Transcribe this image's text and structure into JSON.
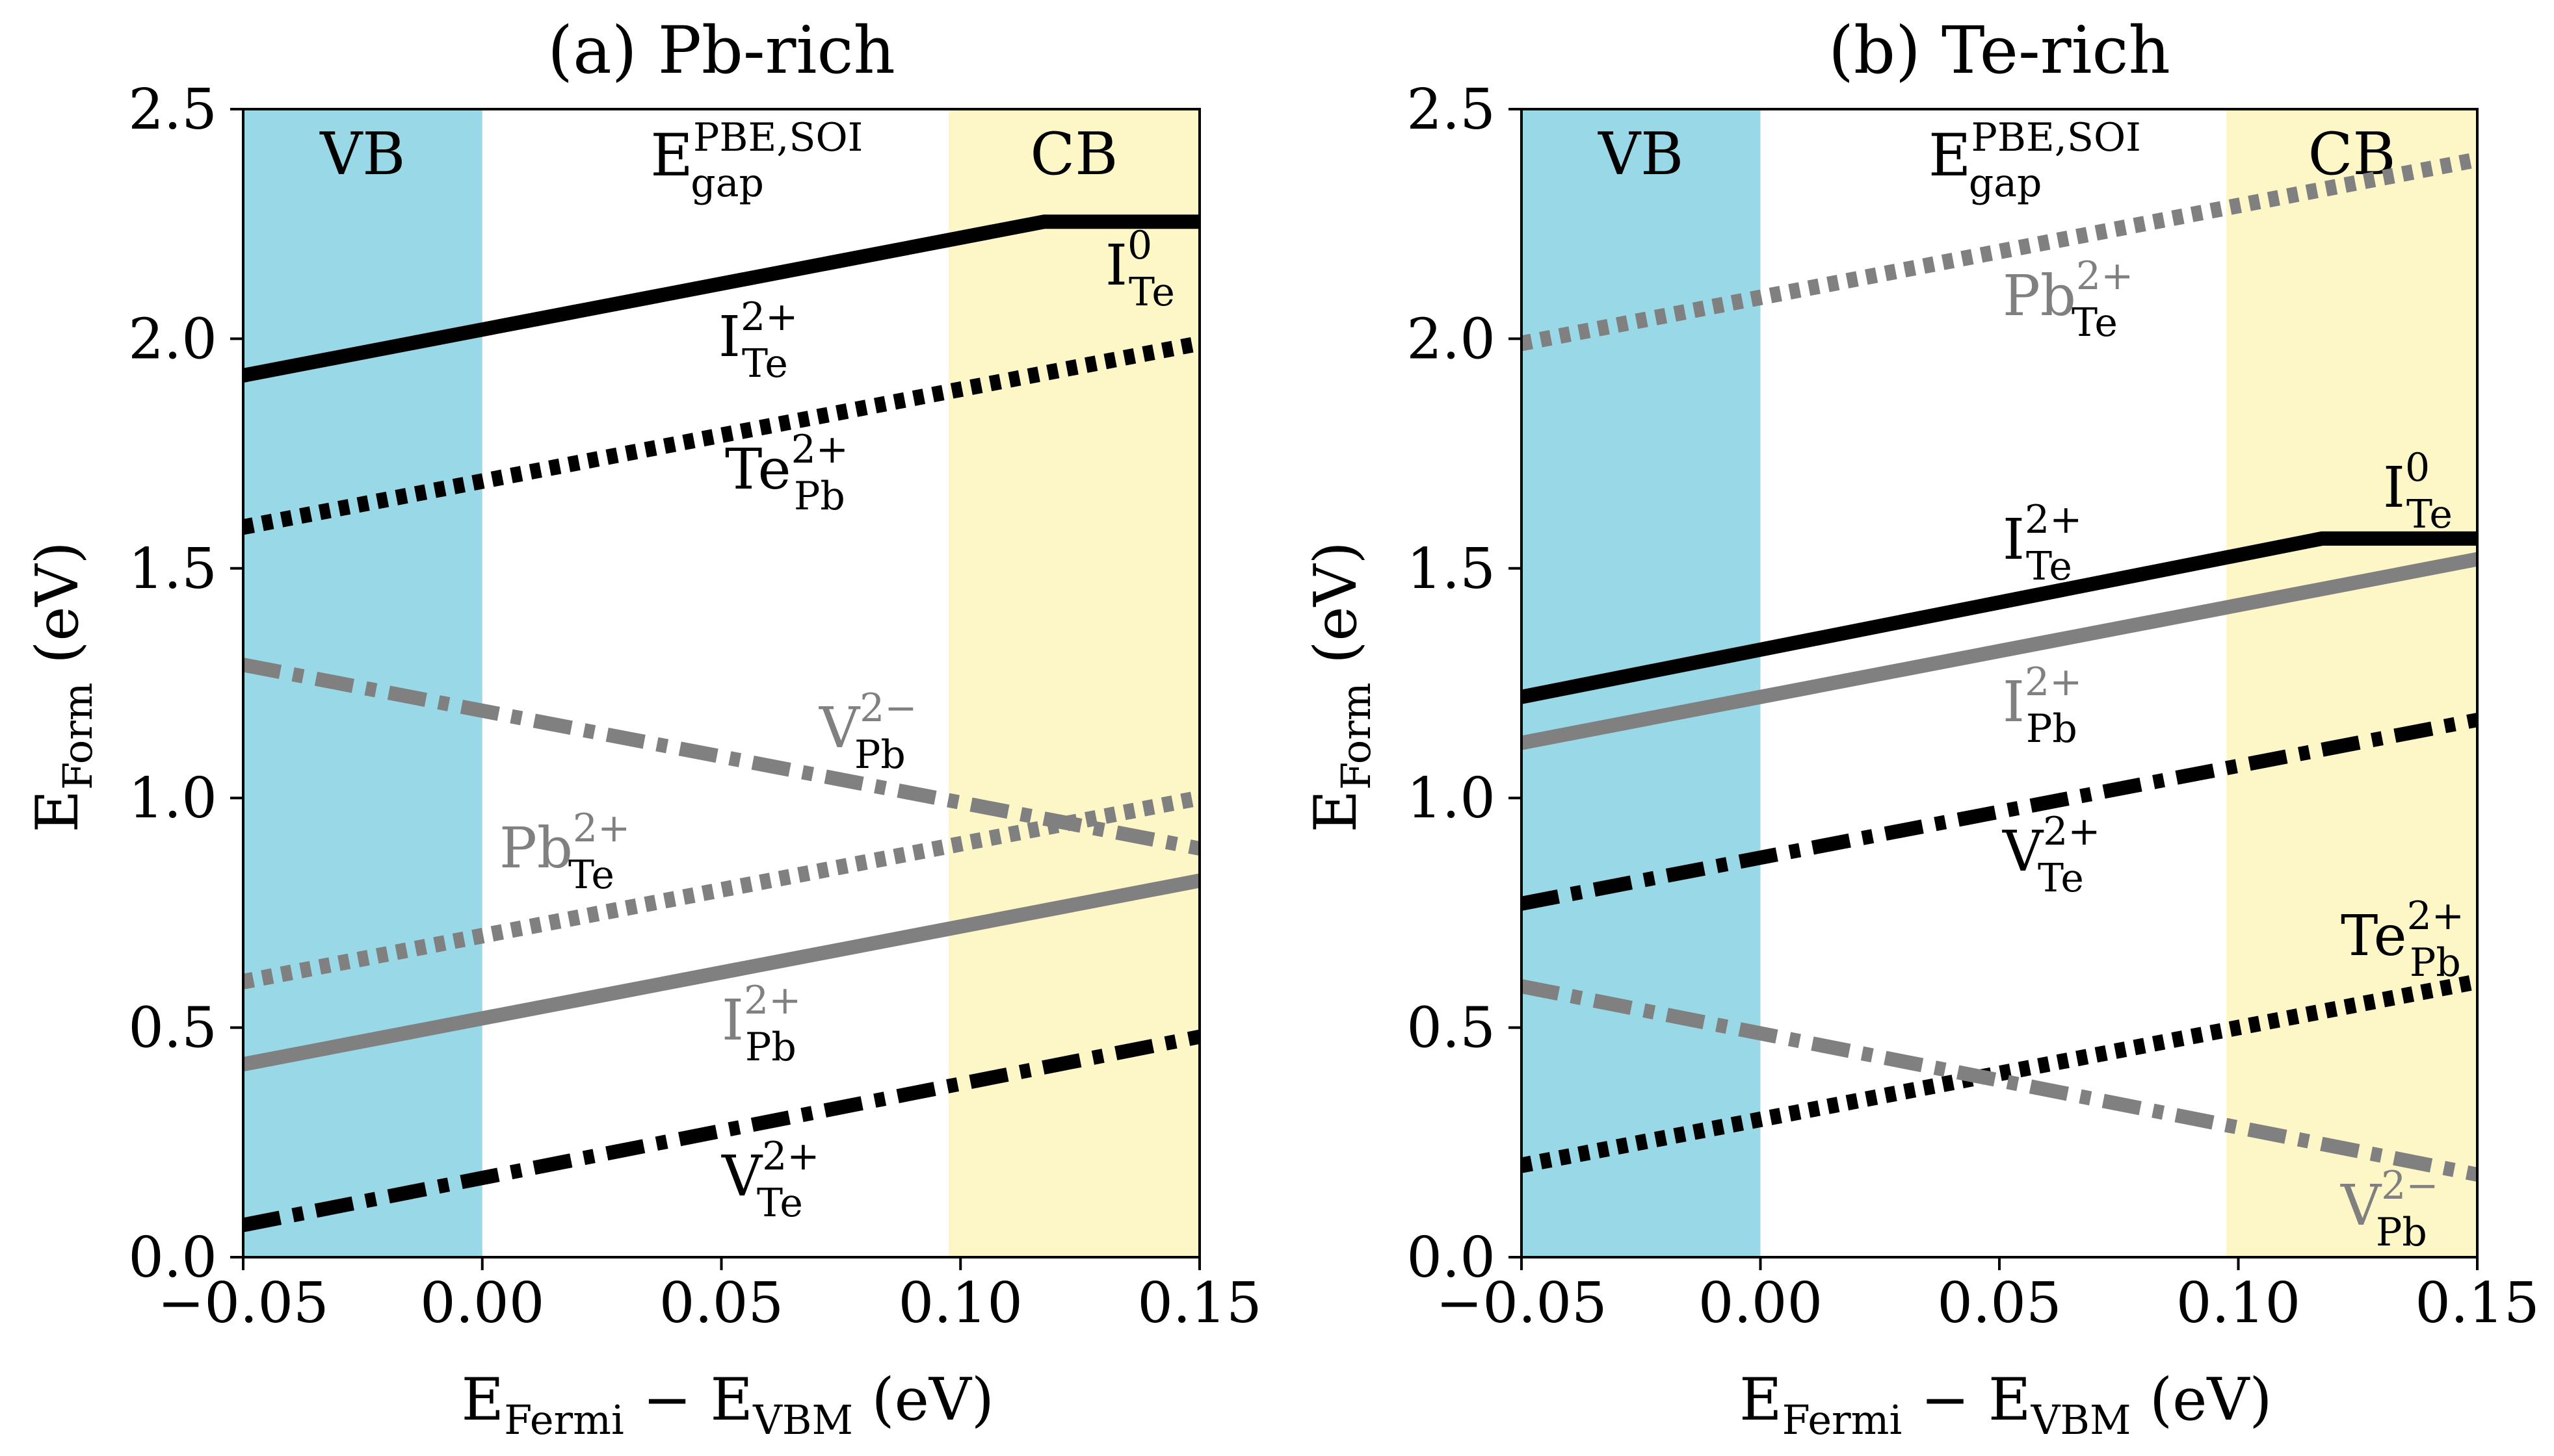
{
  "colors": {
    "vb": "#99d8e6",
    "cb": "#fdf7c8",
    "black": "#000000",
    "gray": "#808080"
  },
  "labels": {
    "VB": "VB",
    "CB": "CB",
    "gap": "E",
    "gap_sup": "PBE,SOI",
    "gap_sub": "gap"
  },
  "axes_text": {
    "ylabel_main": "E",
    "ylabel_sub": "Form",
    "ylabel_unit": "(eV)",
    "xlabel_a": "E",
    "xlabel_sub_a": "Fermi",
    "xlabel_minus": "−",
    "xlabel_b": "E",
    "xlabel_sub_b": "VBM",
    "xlabel_unit": "(eV)"
  },
  "chart_data": [
    {
      "type": "line",
      "title": "(a) Pb-rich",
      "xlabel": "E_Fermi − E_VBM (eV)",
      "ylabel": "E_Form (eV)",
      "xlim": [
        -0.05,
        0.15
      ],
      "ylim": [
        0,
        2.5
      ],
      "xticks": [
        -0.05,
        0.0,
        0.05,
        0.1,
        0.15
      ],
      "xtick_labels": [
        "−0.05",
        "0.00",
        "0.05",
        "0.10",
        "0.15"
      ],
      "yticks": [
        0.0,
        0.5,
        1.0,
        1.5,
        2.0,
        2.5
      ],
      "ytick_labels": [
        "0.0",
        "0.5",
        "1.0",
        "1.5",
        "2.0",
        "2.5"
      ],
      "regions": {
        "vb": [
          -0.05,
          0.0
        ],
        "cb": [
          0.0975,
          0.15
        ]
      },
      "series": [
        {
          "name": "I_Te",
          "label_main": "I",
          "label_sup": "2+",
          "label_sub": "Te",
          "color": "black",
          "dash": "solid",
          "x": [
            -0.05,
            0.1175,
            0.15
          ],
          "y": [
            1.92,
            2.255,
            2.255
          ]
        },
        {
          "name": "I0_Te",
          "label_main": "I",
          "label_sup": "0",
          "label_sub": "Te",
          "color": "black",
          "dash": "none",
          "x": [],
          "y": []
        },
        {
          "name": "Te_Pb",
          "label_main": "Te",
          "label_sup": "2+",
          "label_sub": "Pb",
          "color": "black",
          "dash": "dotted",
          "x": [
            -0.05,
            0.15
          ],
          "y": [
            1.59,
            1.99
          ]
        },
        {
          "name": "V_Pb",
          "label_main": "V",
          "label_sup": "2−",
          "label_sub": "Pb",
          "color": "gray",
          "dash": "dashdot",
          "x": [
            -0.05,
            0.15
          ],
          "y": [
            1.29,
            0.89
          ]
        },
        {
          "name": "Pb_Te",
          "label_main": "Pb",
          "label_sup": "2+",
          "label_sub": "Te",
          "color": "gray",
          "dash": "dotted",
          "x": [
            -0.05,
            0.15
          ],
          "y": [
            0.6,
            1.0
          ]
        },
        {
          "name": "I_Pb",
          "label_main": "I",
          "label_sup": "2+",
          "label_sub": "Pb",
          "color": "gray",
          "dash": "solid",
          "x": [
            -0.05,
            0.15
          ],
          "y": [
            0.42,
            0.82
          ]
        },
        {
          "name": "V_Te",
          "label_main": "V",
          "label_sup": "2+",
          "label_sub": "Te",
          "color": "black",
          "dash": "dashdot",
          "x": [
            -0.05,
            0.15
          ],
          "y": [
            0.07,
            0.48
          ]
        }
      ]
    },
    {
      "type": "line",
      "title": "(b) Te-rich",
      "xlabel": "E_Fermi − E_VBM (eV)",
      "ylabel": "E_Form (eV)",
      "xlim": [
        -0.05,
        0.15
      ],
      "ylim": [
        0,
        2.5
      ],
      "xticks": [
        -0.05,
        0.0,
        0.05,
        0.1,
        0.15
      ],
      "xtick_labels": [
        "−0.05",
        "0.00",
        "0.05",
        "0.10",
        "0.15"
      ],
      "yticks": [
        0.0,
        0.5,
        1.0,
        1.5,
        2.0,
        2.5
      ],
      "ytick_labels": [
        "0.0",
        "0.5",
        "1.0",
        "1.5",
        "2.0",
        "2.5"
      ],
      "regions": {
        "vb": [
          -0.05,
          0.0
        ],
        "cb": [
          0.0975,
          0.15
        ]
      },
      "series": [
        {
          "name": "Pb_Te",
          "label_main": "Pb",
          "label_sup": "2+",
          "label_sub": "Te",
          "color": "gray",
          "dash": "dotted",
          "x": [
            -0.05,
            0.15
          ],
          "y": [
            1.99,
            2.39
          ]
        },
        {
          "name": "I_Te",
          "label_main": "I",
          "label_sup": "2+",
          "label_sub": "Te",
          "color": "black",
          "dash": "solid",
          "x": [
            -0.05,
            0.1175,
            0.15
          ],
          "y": [
            1.22,
            1.565,
            1.565
          ]
        },
        {
          "name": "I0_Te",
          "label_main": "I",
          "label_sup": "0",
          "label_sub": "Te",
          "color": "black",
          "dash": "none",
          "x": [],
          "y": []
        },
        {
          "name": "I_Pb",
          "label_main": "I",
          "label_sup": "2+",
          "label_sub": "Pb",
          "color": "gray",
          "dash": "solid",
          "x": [
            -0.05,
            0.15
          ],
          "y": [
            1.12,
            1.52
          ]
        },
        {
          "name": "V_Te",
          "label_main": "V",
          "label_sup": "2+",
          "label_sub": "Te",
          "color": "black",
          "dash": "dashdot",
          "x": [
            -0.05,
            0.15
          ],
          "y": [
            0.77,
            1.17
          ]
        },
        {
          "name": "Te_Pb",
          "label_main": "Te",
          "label_sup": "2+",
          "label_sub": "Pb",
          "color": "black",
          "dash": "dotted",
          "x": [
            -0.05,
            0.15
          ],
          "y": [
            0.2,
            0.6
          ]
        },
        {
          "name": "V_Pb",
          "label_main": "V",
          "label_sup": "2−",
          "label_sub": "Pb",
          "color": "gray",
          "dash": "dashdot",
          "x": [
            -0.05,
            0.15
          ],
          "y": [
            0.59,
            0.18
          ]
        }
      ]
    }
  ]
}
